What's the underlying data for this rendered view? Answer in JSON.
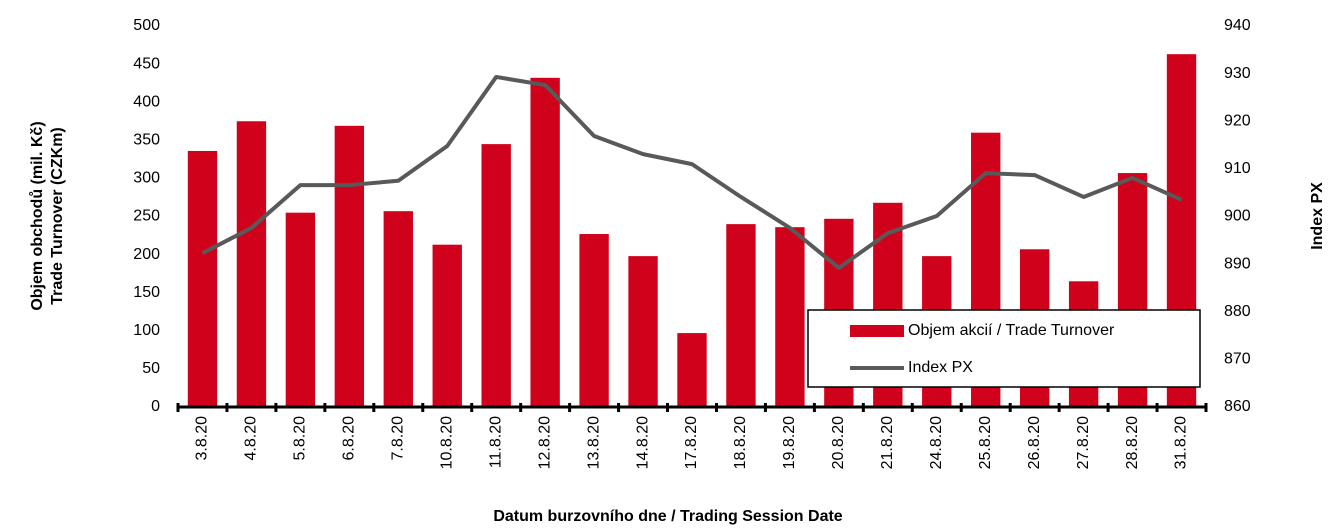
{
  "chart_data": {
    "type": "bar",
    "categories": [
      "3.8.20",
      "4.8.20",
      "5.8.20",
      "6.8.20",
      "7.8.20",
      "10.8.20",
      "11.8.20",
      "12.8.20",
      "13.8.20",
      "14.8.20",
      "17.8.20",
      "18.8.20",
      "19.8.20",
      "20.8.20",
      "21.8.20",
      "24.8.20",
      "25.8.20",
      "26.8.20",
      "27.8.20",
      "28.8.20",
      "31.8.20"
    ],
    "series": [
      {
        "name": "Objem akcií / Trade Turnover",
        "type": "bar",
        "color": "#d0021b",
        "values": [
          336,
          375,
          255,
          369,
          257,
          213,
          345,
          432,
          227,
          198,
          97,
          240,
          236,
          247,
          268,
          198,
          360,
          207,
          165,
          307,
          463
        ]
      },
      {
        "name": "Index PX",
        "type": "line",
        "axis": "y2",
        "color": "#595959",
        "values": [
          892.3,
          897.6,
          906.6,
          906.6,
          907.5,
          914.8,
          929.3,
          927.6,
          916.9,
          913.1,
          911.0,
          904.1,
          897.6,
          889.2,
          896.5,
          900.1,
          909.1,
          908.7,
          904.1,
          908.1,
          903.5
        ]
      }
    ],
    "ylabel": [
      "Objem obchodů (mil. Kč)",
      "Trade Turnover (CZKm)"
    ],
    "y2label": "Index PX",
    "xlabel": "Datum burzovního dne / Trading Session Date",
    "ylim": [
      0,
      500
    ],
    "yticks": [
      0,
      50,
      100,
      150,
      200,
      250,
      300,
      350,
      400,
      450,
      500
    ],
    "y2lim": [
      860,
      940
    ],
    "y2ticks": [
      860,
      870,
      880,
      890,
      900,
      910,
      920,
      930,
      940
    ],
    "grid": false,
    "legend": "lower right"
  }
}
